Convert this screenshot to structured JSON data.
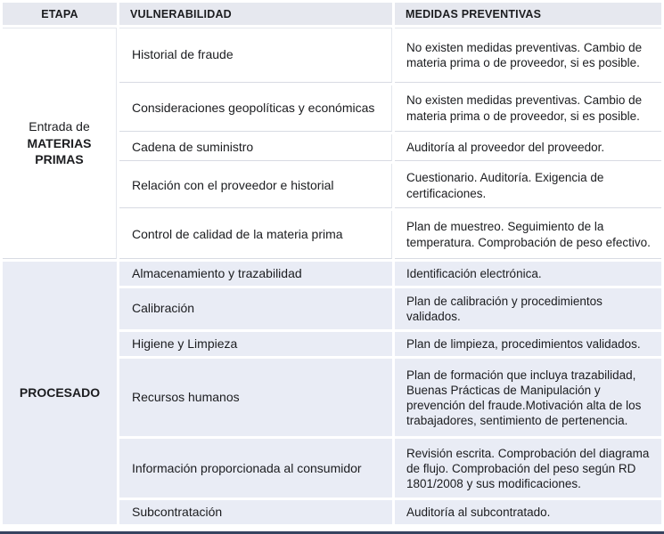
{
  "table": {
    "headers": {
      "etapa": "ETAPA",
      "vulnerabilidad": "VULNERABILIDAD",
      "medidas": "MEDIDAS PREVENTIVAS"
    },
    "sections": [
      {
        "etapa_prefix": "Entrada de",
        "etapa_name": "MATERIAS PRIMAS",
        "rows": [
          {
            "vulnerabilidad": "Historial de fraude",
            "medidas": "No existen medidas preventivas. Cambio de materia prima o de proveedor, si es posible."
          },
          {
            "vulnerabilidad": "Consideraciones geopolíticas y económicas",
            "medidas": "No existen medidas preventivas. Cambio de materia prima o de proveedor, si es posible."
          },
          {
            "vulnerabilidad": "Cadena de suministro",
            "medidas": "Auditoría al proveedor del proveedor."
          },
          {
            "vulnerabilidad": "Relación con el proveedor e historial",
            "medidas": "Cuestionario. Auditoría. Exigencia de certificaciones."
          },
          {
            "vulnerabilidad": "Control de calidad de la materia prima",
            "medidas": "Plan de muestreo. Seguimiento de la temperatura. Comprobación de peso efectivo."
          }
        ]
      },
      {
        "etapa_prefix": "",
        "etapa_name": "PROCESADO",
        "rows": [
          {
            "vulnerabilidad": "Almacenamiento y trazabilidad",
            "medidas": "Identificación electrónica."
          },
          {
            "vulnerabilidad": "Calibración",
            "medidas": "Plan de calibración y procedimientos validados."
          },
          {
            "vulnerabilidad": "Higiene y Limpieza",
            "medidas": "Plan de limpieza, procedimientos validados."
          },
          {
            "vulnerabilidad": "Recursos humanos",
            "medidas": "Plan de formación que incluya trazabilidad, Buenas Prácticas de Manipulación y prevención del fraude.Motivación alta de los trabajadores, sentimiento de pertenencia."
          },
          {
            "vulnerabilidad": "Información proporcionada al consumidor",
            "medidas": "Revisión escrita. Comprobación del diagrama de flujo. Comprobación del peso según RD 1801/2008 y sus modificaciones."
          },
          {
            "vulnerabilidad": "Subcontratación",
            "medidas": "Auditoría al subcontratado."
          }
        ]
      }
    ],
    "colors": {
      "header_bg": "#e6e8ef",
      "section2_bg": "#e9ecf5",
      "row_separator": "#d8dbe3",
      "bottom_bar": "#36435f",
      "text": "#1b1c1f"
    }
  }
}
